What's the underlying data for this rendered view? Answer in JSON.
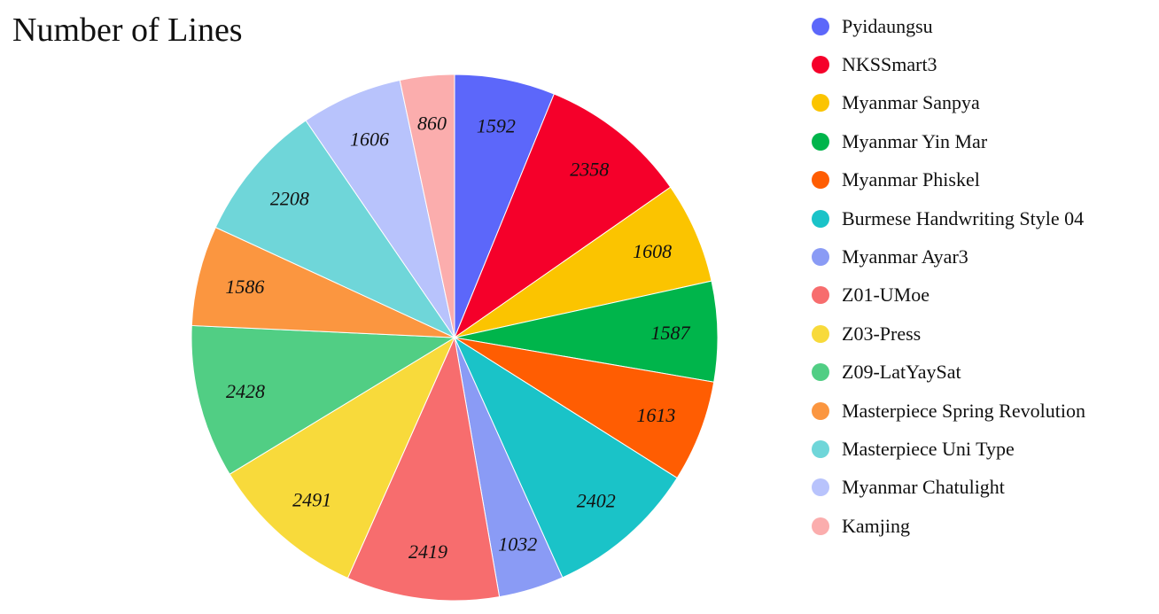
{
  "chart_data": {
    "type": "pie",
    "title": "Number of Lines",
    "legend_position": "right",
    "labels": [
      "Pyidaungsu",
      "NKSSmart3",
      "Myanmar Sanpya",
      "Myanmar Yin Mar",
      "Myanmar Phiskel",
      "Burmese Handwriting Style 04",
      "Myanmar Ayar3",
      "Z01-UMoe",
      "Z03-Press",
      "Z09-LatYaySat",
      "Masterpiece Spring Revolution",
      "Masterpiece Uni Type",
      "Myanmar Chatulight",
      "Kamjing"
    ],
    "values": [
      1592,
      2358,
      1608,
      1587,
      1613,
      2402,
      1032,
      2419,
      2491,
      2428,
      1586,
      2208,
      1606,
      860
    ],
    "colors": [
      "#5c67fa",
      "#f5002a",
      "#fbc400",
      "#00b54b",
      "#ff5d02",
      "#1ac3c8",
      "#8a9bf5",
      "#f76d6e",
      "#f8da3b",
      "#51ce84",
      "#fb9640",
      "#6fd6d9",
      "#b8c3fc",
      "#fbadad"
    ]
  }
}
